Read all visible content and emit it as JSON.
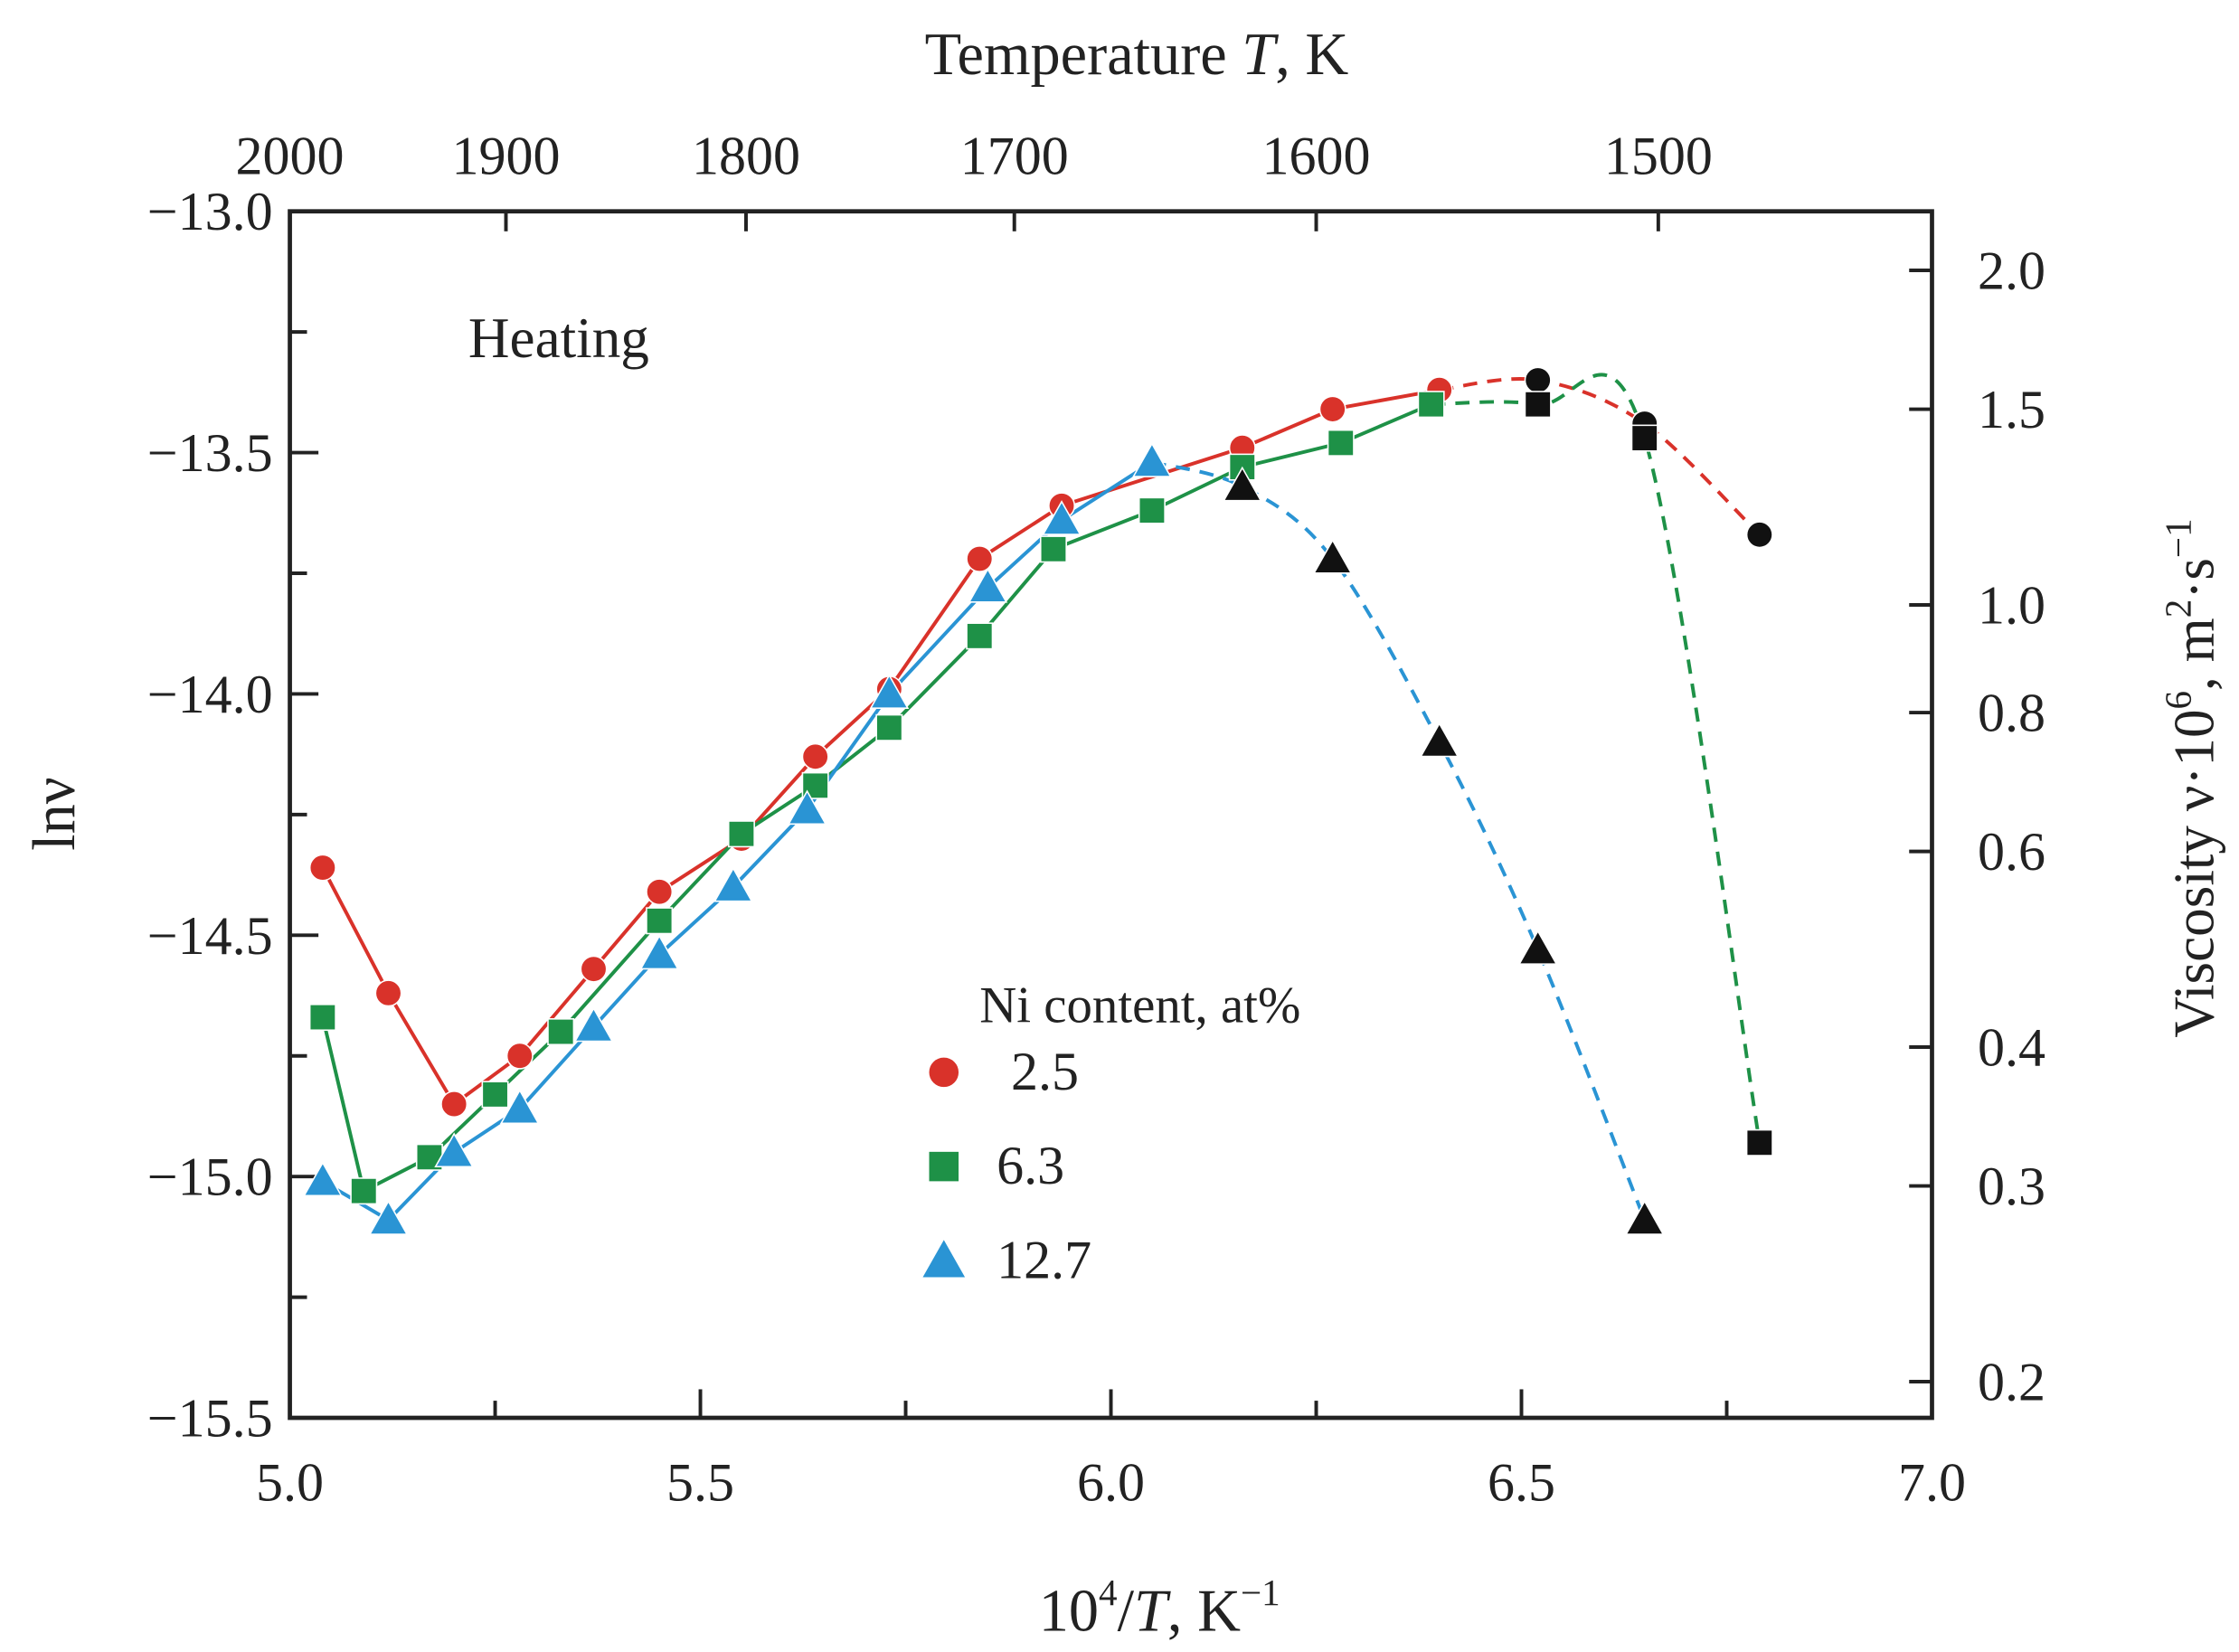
{
  "chart_data": {
    "type": "line",
    "title": "",
    "annotation": "Heating",
    "xlabel": "10^4/T, K^-1",
    "xlabel_parts": {
      "base": "10",
      "sup": "4",
      "mid": "/",
      "T": "T",
      "unit": ", K",
      "unit_sup": "−1"
    },
    "ylabel": "lnν",
    "top_xlabel": {
      "prefix": "Temperature ",
      "T": "T",
      "suffix": ", K"
    },
    "right_ylabel": {
      "text": "Viscosity ν·10",
      "sup": "6",
      "unit": ", m",
      "sup2": "2",
      "dot": "·s",
      "sup3": "−1"
    },
    "xlim": [
      5.0,
      7.0
    ],
    "ylim": [
      -15.5,
      -13.0
    ],
    "x_ticks": [
      "5.0",
      "5.5",
      "6.0",
      "6.5",
      "7.0"
    ],
    "y_ticks": [
      "−13.0",
      "−13.5",
      "−14.0",
      "−14.5",
      "−15.0",
      "−15.5"
    ],
    "top_ticks": [
      "2000",
      "1900",
      "1800",
      "1700",
      "1600",
      "1500"
    ],
    "right_ticks": [
      "2.0",
      "1.5",
      "1.0",
      "0.8",
      "0.6",
      "0.4",
      "0.3",
      "0.2"
    ],
    "legend_title": "Ni content, at%",
    "legend_position": "center",
    "series": [
      {
        "name": "2.5",
        "color": "#d9322a",
        "marker": "circle",
        "x": [
          5.04,
          5.12,
          5.2,
          5.28,
          5.37,
          5.45,
          5.55,
          5.64,
          5.73,
          5.84,
          5.94,
          6.16,
          6.27,
          6.4
        ],
        "y": [
          -14.36,
          -14.62,
          -14.85,
          -14.75,
          -14.57,
          -14.41,
          -14.3,
          -14.13,
          -13.99,
          -13.72,
          -13.61,
          -13.49,
          -13.41,
          -13.37
        ],
        "dashed_x": [
          6.52,
          6.65,
          6.79
        ],
        "dashed_y": [
          -13.35,
          -13.44,
          -13.67
        ]
      },
      {
        "name": "6.3",
        "color": "#1e9147",
        "marker": "square",
        "x": [
          5.04,
          5.09,
          5.17,
          5.25,
          5.33,
          5.45,
          5.55,
          5.64,
          5.73,
          5.84,
          5.93,
          6.05,
          6.16,
          6.28,
          6.39
        ],
        "y": [
          -14.67,
          -15.03,
          -14.96,
          -14.83,
          -14.7,
          -14.47,
          -14.29,
          -14.19,
          -14.07,
          -13.88,
          -13.7,
          -13.62,
          -13.53,
          -13.48,
          -13.4
        ],
        "dashed_x": [
          6.52,
          6.65,
          6.79
        ],
        "dashed_y": [
          -13.4,
          -13.47,
          -14.93
        ]
      },
      {
        "name": "12.7",
        "color": "#2a94d4",
        "marker": "triangle",
        "x": [
          5.04,
          5.12,
          5.2,
          5.28,
          5.37,
          5.45,
          5.54,
          5.63,
          5.73,
          5.85,
          5.94,
          6.05
        ],
        "y": [
          -15.01,
          -15.09,
          -14.95,
          -14.86,
          -14.69,
          -14.54,
          -14.4,
          -14.24,
          -14.0,
          -13.78,
          -13.64,
          -13.52
        ],
        "dashed_x": [
          6.16,
          6.27,
          6.4,
          6.52,
          6.65
        ],
        "dashed_y": [
          -13.57,
          -13.72,
          -14.1,
          -14.53,
          -15.09
        ]
      }
    ]
  }
}
